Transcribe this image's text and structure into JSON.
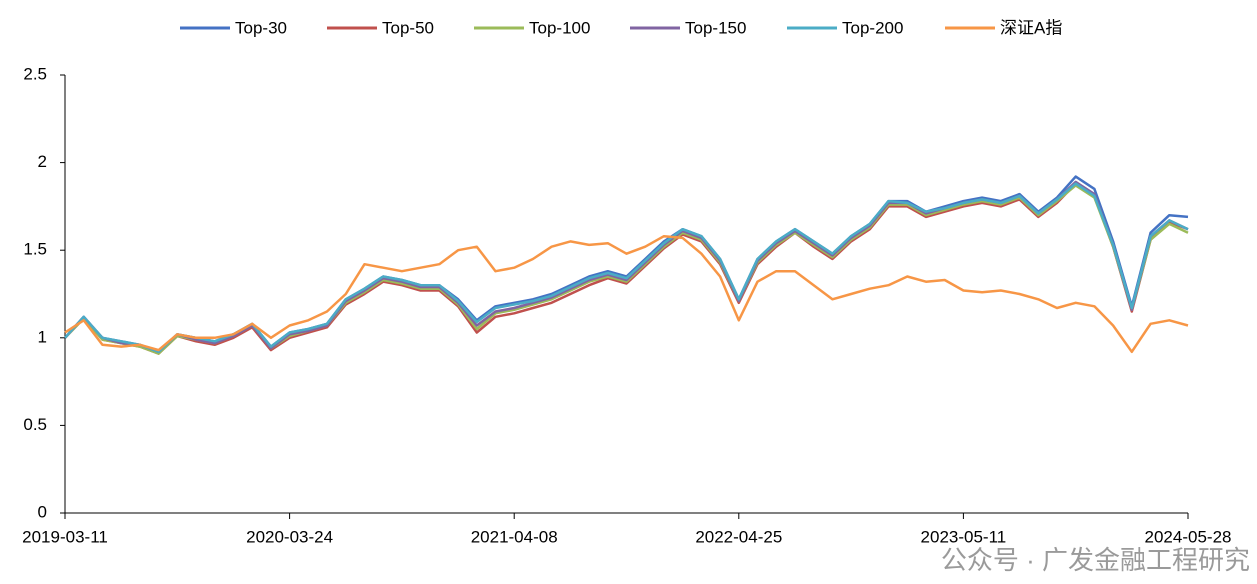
{
  "chart_data": {
    "type": "line",
    "categories": [
      "2019-03-11",
      null,
      null,
      null,
      null,
      null,
      null,
      null,
      null,
      null,
      null,
      null,
      "2020-03-24",
      null,
      null,
      null,
      null,
      null,
      null,
      null,
      null,
      null,
      null,
      null,
      "2021-04-08",
      null,
      null,
      null,
      null,
      null,
      null,
      null,
      null,
      null,
      null,
      null,
      "2022-04-25",
      null,
      null,
      null,
      null,
      null,
      null,
      null,
      null,
      null,
      null,
      null,
      "2023-05-11",
      null,
      null,
      null,
      null,
      null,
      null,
      null,
      null,
      null,
      null,
      null,
      "2024-05-28"
    ],
    "series": [
      {
        "name": "Top-30",
        "color": "#4472c4",
        "values": [
          1.0,
          1.12,
          1.0,
          0.98,
          0.96,
          0.92,
          1.02,
          1.0,
          0.98,
          1.02,
          1.08,
          0.95,
          1.03,
          1.05,
          1.08,
          1.22,
          1.28,
          1.35,
          1.33,
          1.3,
          1.3,
          1.22,
          1.1,
          1.18,
          1.2,
          1.22,
          1.25,
          1.3,
          1.35,
          1.38,
          1.35,
          1.45,
          1.55,
          1.62,
          1.58,
          1.45,
          1.22,
          1.45,
          1.55,
          1.62,
          1.55,
          1.48,
          1.58,
          1.65,
          1.78,
          1.78,
          1.72,
          1.75,
          1.78,
          1.8,
          1.78,
          1.82,
          1.72,
          1.8,
          1.92,
          1.85,
          1.55,
          1.18,
          1.6,
          1.7,
          1.69
        ]
      },
      {
        "name": "Top-50",
        "color": "#c0504d",
        "values": [
          1.0,
          1.11,
          0.99,
          0.97,
          0.95,
          0.91,
          1.01,
          0.98,
          0.96,
          1.0,
          1.06,
          0.93,
          1.0,
          1.03,
          1.06,
          1.19,
          1.25,
          1.32,
          1.3,
          1.27,
          1.27,
          1.18,
          1.03,
          1.12,
          1.14,
          1.17,
          1.2,
          1.25,
          1.3,
          1.34,
          1.31,
          1.41,
          1.51,
          1.59,
          1.55,
          1.42,
          1.2,
          1.42,
          1.52,
          1.6,
          1.52,
          1.45,
          1.55,
          1.62,
          1.75,
          1.75,
          1.69,
          1.72,
          1.75,
          1.77,
          1.75,
          1.79,
          1.69,
          1.77,
          1.88,
          1.81,
          1.52,
          1.15,
          1.56,
          1.66,
          1.62
        ]
      },
      {
        "name": "Top-100",
        "color": "#9bbb59",
        "values": [
          1.0,
          1.11,
          0.99,
          0.97,
          0.95,
          0.91,
          1.01,
          0.99,
          0.97,
          1.01,
          1.07,
          0.94,
          1.01,
          1.04,
          1.07,
          1.2,
          1.26,
          1.33,
          1.31,
          1.28,
          1.28,
          1.19,
          1.05,
          1.14,
          1.16,
          1.19,
          1.22,
          1.27,
          1.32,
          1.35,
          1.32,
          1.42,
          1.52,
          1.6,
          1.56,
          1.43,
          1.21,
          1.43,
          1.53,
          1.6,
          1.53,
          1.46,
          1.56,
          1.63,
          1.76,
          1.76,
          1.7,
          1.73,
          1.76,
          1.78,
          1.76,
          1.8,
          1.7,
          1.78,
          1.87,
          1.8,
          1.52,
          1.16,
          1.56,
          1.65,
          1.6
        ]
      },
      {
        "name": "Top-150",
        "color": "#8064a2",
        "values": [
          1.0,
          1.12,
          1.0,
          0.97,
          0.96,
          0.92,
          1.02,
          0.99,
          0.97,
          1.01,
          1.07,
          0.94,
          1.02,
          1.04,
          1.07,
          1.21,
          1.27,
          1.34,
          1.32,
          1.29,
          1.29,
          1.2,
          1.07,
          1.15,
          1.17,
          1.2,
          1.23,
          1.28,
          1.33,
          1.36,
          1.33,
          1.43,
          1.53,
          1.61,
          1.57,
          1.44,
          1.21,
          1.44,
          1.54,
          1.61,
          1.54,
          1.47,
          1.57,
          1.64,
          1.77,
          1.77,
          1.71,
          1.74,
          1.77,
          1.79,
          1.77,
          1.81,
          1.71,
          1.79,
          1.89,
          1.82,
          1.53,
          1.16,
          1.58,
          1.67,
          1.62
        ]
      },
      {
        "name": "Top-200",
        "color": "#4bacc6",
        "values": [
          1.0,
          1.12,
          1.0,
          0.98,
          0.96,
          0.92,
          1.02,
          1.0,
          0.98,
          1.02,
          1.08,
          0.95,
          1.03,
          1.05,
          1.08,
          1.22,
          1.28,
          1.35,
          1.33,
          1.3,
          1.3,
          1.21,
          1.09,
          1.17,
          1.19,
          1.21,
          1.24,
          1.29,
          1.34,
          1.37,
          1.34,
          1.44,
          1.54,
          1.62,
          1.58,
          1.45,
          1.22,
          1.45,
          1.55,
          1.62,
          1.55,
          1.48,
          1.58,
          1.65,
          1.78,
          1.77,
          1.72,
          1.74,
          1.77,
          1.79,
          1.77,
          1.81,
          1.71,
          1.79,
          1.88,
          1.81,
          1.53,
          1.17,
          1.58,
          1.67,
          1.62
        ]
      },
      {
        "name": "深证A指",
        "color": "#f79646",
        "values": [
          1.03,
          1.1,
          0.96,
          0.95,
          0.96,
          0.93,
          1.02,
          1.0,
          1.0,
          1.02,
          1.08,
          1.0,
          1.07,
          1.1,
          1.15,
          1.25,
          1.42,
          1.4,
          1.38,
          1.4,
          1.42,
          1.5,
          1.52,
          1.38,
          1.4,
          1.45,
          1.52,
          1.55,
          1.53,
          1.54,
          1.48,
          1.52,
          1.58,
          1.57,
          1.48,
          1.35,
          1.1,
          1.32,
          1.38,
          1.38,
          1.3,
          1.22,
          1.25,
          1.28,
          1.3,
          1.35,
          1.32,
          1.33,
          1.27,
          1.26,
          1.27,
          1.25,
          1.22,
          1.17,
          1.2,
          1.18,
          1.07,
          0.92,
          1.08,
          1.1,
          1.07
        ]
      }
    ],
    "ylim": [
      0,
      2.5
    ],
    "yticks": [
      0,
      0.5,
      1,
      1.5,
      2,
      2.5
    ],
    "grid": false,
    "watermark": "公众号 · 广发金融工程研究"
  }
}
